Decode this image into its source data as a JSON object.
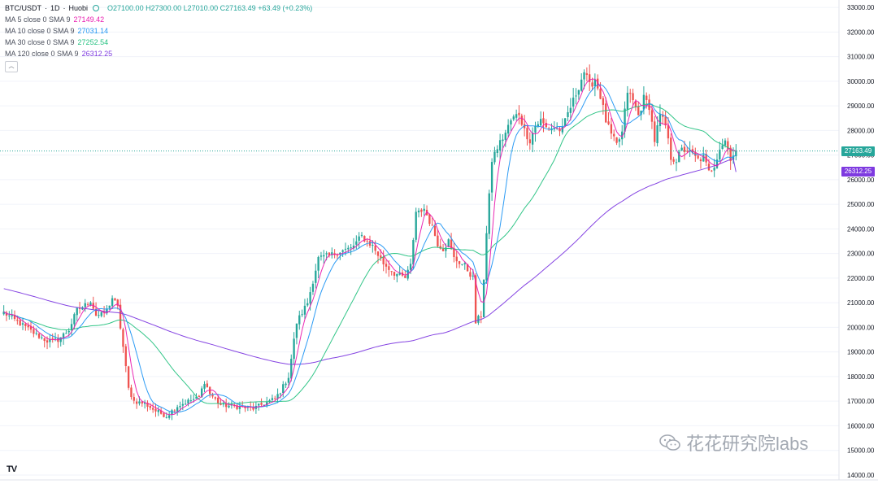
{
  "legend": {
    "symbol": "BTC/USDT",
    "interval": "1D",
    "exchange": "Huobi",
    "ohlc": "O27100.00 H27300.00 L27010.00 C27163.49 +63.49 (+0.23%)",
    "mas": [
      {
        "label": "MA 5 close 0 SMA 9",
        "value": "27149.42",
        "color": "#e91eb0"
      },
      {
        "label": "MA 10 close 0 SMA 9",
        "value": "27031.14",
        "color": "#2196f3"
      },
      {
        "label": "MA 30 close 0 SMA 9",
        "value": "27252.54",
        "color": "#26c281"
      },
      {
        "label": "MA 120 close 0 SMA 9",
        "value": "26312.25",
        "color": "#7e3ae0"
      }
    ],
    "collapse_icon": "chevron-up-icon"
  },
  "tags": {
    "last_price": "27163.49",
    "ma120": "26312.25"
  },
  "watermark": "花花研究院labs",
  "logo": "TV",
  "chart_data": {
    "type": "candlestick",
    "y_axis_position": "right",
    "ylim": [
      13800,
      33300
    ],
    "y_ticks": [
      "14000.00",
      "15000.00",
      "16000.00",
      "17000.00",
      "18000.00",
      "19000.00",
      "20000.00",
      "21000.00",
      "22000.00",
      "23000.00",
      "24000.00",
      "25000.00",
      "26000.00",
      "27000.00",
      "28000.00",
      "29000.00",
      "30000.00",
      "31000.00",
      "32000.00",
      "33000.00"
    ],
    "grid": true,
    "colors": {
      "up": "#26a69a",
      "down": "#ef5350"
    },
    "anchors": [
      [
        0,
        20600
      ],
      [
        4,
        20300
      ],
      [
        8,
        20000
      ],
      [
        12,
        19700
      ],
      [
        16,
        19450
      ],
      [
        20,
        19500
      ],
      [
        24,
        19900
      ],
      [
        27,
        20700
      ],
      [
        30,
        20900
      ],
      [
        32,
        21100
      ],
      [
        34,
        20500
      ],
      [
        36,
        20500
      ],
      [
        38,
        20700
      ],
      [
        40,
        21200
      ],
      [
        42,
        20800
      ],
      [
        44,
        19200
      ],
      [
        46,
        17500
      ],
      [
        48,
        17000
      ],
      [
        52,
        16900
      ],
      [
        56,
        16600
      ],
      [
        60,
        16400
      ],
      [
        64,
        16800
      ],
      [
        68,
        17000
      ],
      [
        72,
        17150
      ],
      [
        74,
        17800
      ],
      [
        76,
        17300
      ],
      [
        80,
        16850
      ],
      [
        84,
        16800
      ],
      [
        88,
        16750
      ],
      [
        92,
        16700
      ],
      [
        96,
        16900
      ],
      [
        100,
        17100
      ],
      [
        102,
        17400
      ],
      [
        105,
        18000
      ],
      [
        108,
        20200
      ],
      [
        112,
        21000
      ],
      [
        116,
        22800
      ],
      [
        120,
        22900
      ],
      [
        124,
        23100
      ],
      [
        128,
        23200
      ],
      [
        132,
        23700
      ],
      [
        136,
        23300
      ],
      [
        140,
        22600
      ],
      [
        144,
        22200
      ],
      [
        148,
        22000
      ],
      [
        150,
        22500
      ],
      [
        152,
        24700
      ],
      [
        154,
        24800
      ],
      [
        156,
        24600
      ],
      [
        158,
        24100
      ],
      [
        160,
        23400
      ],
      [
        162,
        23200
      ],
      [
        164,
        23500
      ],
      [
        166,
        22800
      ],
      [
        170,
        22500
      ],
      [
        173,
        22000
      ],
      [
        174,
        20200
      ],
      [
        176,
        20500
      ],
      [
        177,
        22000
      ],
      [
        178,
        23800
      ],
      [
        180,
        26800
      ],
      [
        182,
        27300
      ],
      [
        185,
        27900
      ],
      [
        187,
        28400
      ],
      [
        190,
        28700
      ],
      [
        192,
        28000
      ],
      [
        194,
        27600
      ],
      [
        196,
        28200
      ],
      [
        198,
        28400
      ],
      [
        200,
        28100
      ],
      [
        203,
        28100
      ],
      [
        206,
        28000
      ],
      [
        208,
        28700
      ],
      [
        210,
        29200
      ],
      [
        212,
        29800
      ],
      [
        214,
        30400
      ],
      [
        216,
        29800
      ],
      [
        218,
        30100
      ],
      [
        220,
        29400
      ],
      [
        222,
        28400
      ],
      [
        224,
        27800
      ],
      [
        226,
        27400
      ],
      [
        228,
        27900
      ],
      [
        230,
        29600
      ],
      [
        232,
        29200
      ],
      [
        234,
        28600
      ],
      [
        236,
        29300
      ],
      [
        238,
        29000
      ],
      [
        240,
        27600
      ],
      [
        242,
        28600
      ],
      [
        244,
        28200
      ],
      [
        246,
        26900
      ],
      [
        248,
        26800
      ],
      [
        250,
        27200
      ],
      [
        252,
        27200
      ],
      [
        254,
        27000
      ],
      [
        256,
        26800
      ],
      [
        258,
        26900
      ],
      [
        260,
        26300
      ],
      [
        262,
        26600
      ],
      [
        264,
        27300
      ],
      [
        266,
        27600
      ],
      [
        268,
        26900
      ],
      [
        270,
        27163
      ]
    ],
    "last_close": 27163.49
  }
}
